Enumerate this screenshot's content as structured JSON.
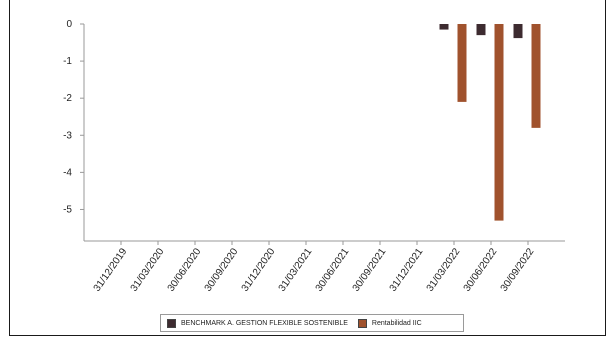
{
  "chart_data": {
    "type": "bar",
    "categories": [
      "31/12/2019",
      "31/03/2020",
      "30/06/2020",
      "30/09/2020",
      "31/12/2020",
      "31/03/2021",
      "30/06/2021",
      "30/09/2021",
      "31/12/2021",
      "31/03/2022",
      "30/06/2022",
      "30/09/2022"
    ],
    "series": [
      {
        "name": "BENCHMARK A. GESTION FLEXIBLE SOSTENIBLE",
        "color": "#3d2b30",
        "values": [
          null,
          null,
          null,
          null,
          null,
          null,
          null,
          null,
          null,
          -0.15,
          -0.3,
          -0.38
        ]
      },
      {
        "name": "Rentabilidad IIC",
        "color": "#a0522d",
        "values": [
          null,
          null,
          null,
          null,
          null,
          null,
          null,
          null,
          null,
          -2.1,
          -5.3,
          -2.8
        ]
      }
    ],
    "yticks": [
      0,
      -1,
      -2,
      -3,
      -4,
      -5
    ],
    "ylim": [
      -5.85,
      0
    ],
    "grid": false,
    "legend_position": "bottom"
  }
}
